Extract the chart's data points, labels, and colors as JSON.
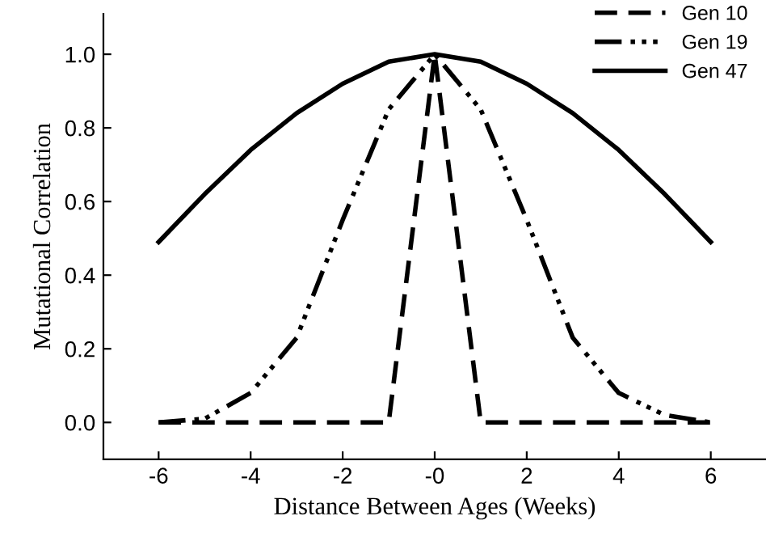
{
  "chart_data": {
    "type": "line",
    "xlabel": "Distance Between Ages (Weeks)",
    "ylabel": "Mutational Correlation",
    "series": [
      {
        "name": "Gen 10",
        "color": "#000000",
        "line_style": "dashed",
        "x": [
          -6,
          -5,
          -4,
          -3,
          -2,
          -1,
          0,
          1,
          2,
          3,
          4,
          5,
          6
        ],
        "values": [
          0,
          0,
          0,
          0,
          0,
          0,
          1.0,
          0,
          0,
          0,
          0,
          0,
          0
        ]
      },
      {
        "name": "Gen 19",
        "color": "#000000",
        "line_style": "dashdotdot",
        "x": [
          -6,
          -5,
          -4,
          -3,
          -2,
          -1,
          0,
          1,
          2,
          3,
          4,
          5,
          6
        ],
        "values": [
          0,
          0.01,
          0.08,
          0.23,
          0.55,
          0.85,
          1.0,
          0.85,
          0.55,
          0.23,
          0.08,
          0.02,
          0
        ]
      },
      {
        "name": "Gen 47",
        "color": "#000000",
        "line_style": "solid",
        "x": [
          -6,
          -5,
          -4,
          -3,
          -2,
          -1,
          0,
          1,
          2,
          3,
          4,
          5,
          6
        ],
        "values": [
          0.49,
          0.62,
          0.74,
          0.84,
          0.92,
          0.98,
          1.0,
          0.98,
          0.92,
          0.84,
          0.74,
          0.62,
          0.49
        ]
      }
    ],
    "xlim": [
      -7.2,
      7.2
    ],
    "ylim": [
      -0.1,
      1.11
    ],
    "xticks": [
      -6,
      -4,
      -2,
      {
        "value": 0,
        "label": "-0"
      },
      2,
      4,
      6
    ],
    "yticks": [
      {
        "value": 0,
        "label": "0.0"
      },
      0.2,
      0.4,
      0.6,
      0.8,
      {
        "value": 1,
        "label": "1.0"
      }
    ],
    "grid": false,
    "legend": "top right",
    "marker": "none"
  }
}
